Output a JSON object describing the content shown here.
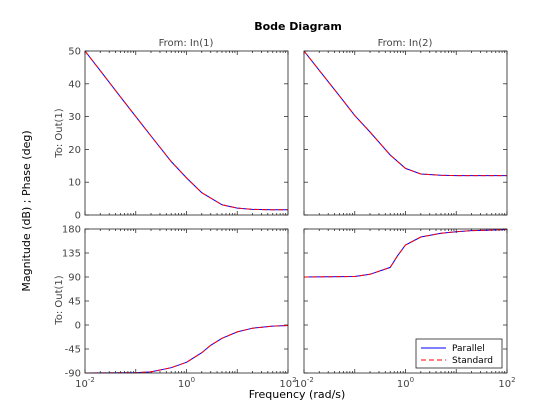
{
  "chart_data": {
    "type": "line",
    "title": "Bode Diagram",
    "xlabel": "Frequency  (rad/s)",
    "ylabel": "Magnitude (dB) ; Phase (deg)",
    "column_titles": [
      "From: In(1)",
      "From: In(2)"
    ],
    "row_label": "To: Out(1)",
    "xscale": "log",
    "xlim": [
      0.01,
      100
    ],
    "x_ticks": [
      {
        "value": 0.01,
        "base": "10",
        "exp": "-2"
      },
      {
        "value": 1,
        "base": "10",
        "exp": "0"
      },
      {
        "value": 100,
        "base": "10",
        "exp": "2"
      }
    ],
    "magnitude_ylim": [
      0,
      50
    ],
    "magnitude_ticks": [
      "0",
      "10",
      "20",
      "30",
      "40",
      "50"
    ],
    "phase_ylim": [
      -90,
      180
    ],
    "phase_ticks": [
      "-90",
      "-45",
      "0",
      "45",
      "90",
      "135",
      "180"
    ],
    "legend": {
      "placement": "lower-right",
      "entries": [
        {
          "name": "Parallel",
          "color": "#0000ff",
          "dash": "solid"
        },
        {
          "name": "Standard",
          "color": "#ff0000",
          "dash": "dashed"
        }
      ]
    },
    "panels": [
      {
        "id": "mag-in1",
        "row": "magnitude",
        "col": 0,
        "x": [
          0.01,
          0.02,
          0.05,
          0.1,
          0.2,
          0.5,
          1,
          2,
          5,
          10,
          20,
          50,
          100
        ],
        "y": [
          50,
          44,
          36,
          30,
          24.1,
          16.3,
          11.3,
          6.8,
          3.1,
          2.1,
          1.7,
          1.6,
          1.6
        ]
      },
      {
        "id": "mag-in2",
        "row": "magnitude",
        "col": 1,
        "x": [
          0.01,
          0.02,
          0.05,
          0.1,
          0.2,
          0.5,
          1,
          2,
          5,
          10,
          20,
          50,
          100
        ],
        "y": [
          50,
          44.1,
          36.3,
          30.3,
          25.3,
          18.3,
          14.2,
          12.5,
          12.1,
          12,
          12,
          12,
          12
        ]
      },
      {
        "id": "phase-in1",
        "row": "phase",
        "col": 0,
        "x": [
          0.01,
          0.1,
          0.2,
          0.5,
          1,
          2,
          3,
          5,
          10,
          20,
          50,
          100
        ],
        "y": [
          -90,
          -89.5,
          -88,
          -80,
          -70,
          -52,
          -38,
          -25,
          -13,
          -6,
          -2,
          -1
        ]
      },
      {
        "id": "phase-in2",
        "row": "phase",
        "col": 1,
        "x": [
          0.01,
          0.1,
          0.2,
          0.5,
          0.7,
          1,
          2,
          5,
          10,
          20,
          50,
          100
        ],
        "y": [
          90,
          91,
          95,
          108,
          130,
          150,
          165,
          172,
          175,
          177,
          178,
          179
        ]
      }
    ]
  }
}
